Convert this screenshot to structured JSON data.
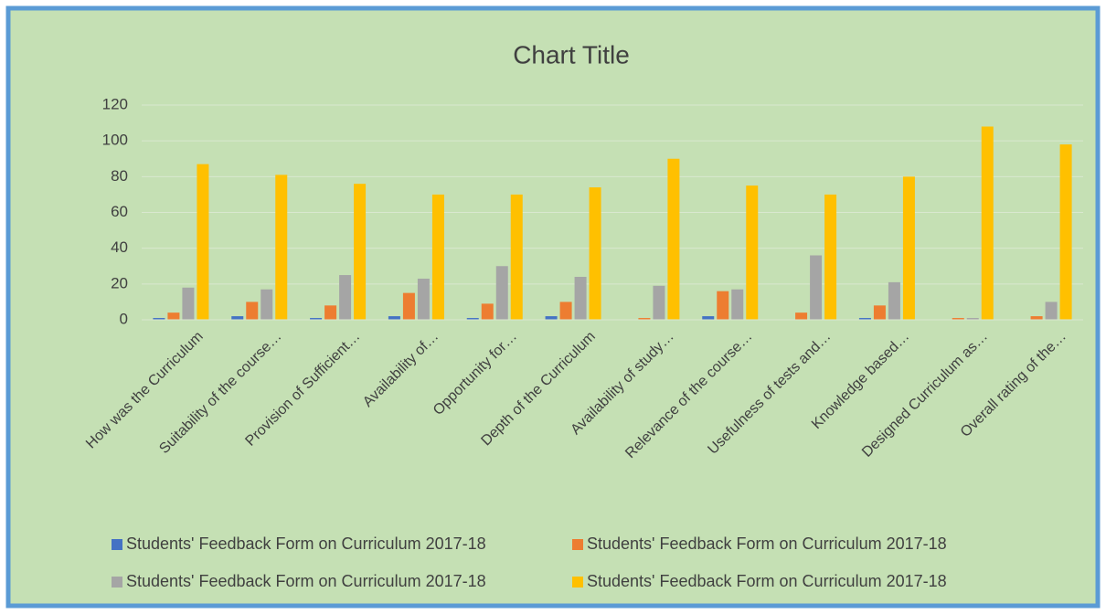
{
  "chart_data": {
    "type": "bar",
    "title": "Chart Title",
    "categories": [
      "How was the Curriculum",
      "Suitability of the course…",
      "Provision of Sufficient…",
      "Availability of…",
      "Opportunity for…",
      "Depth of the Curriculum",
      "Availability of study…",
      "Relevance of the course…",
      "Usefulness of tests and…",
      "Knowledge based…",
      "Designed Curriculum as…",
      "Overall rating of the…"
    ],
    "series": [
      {
        "name": "Students' Feedback Form on Curriculum 2017-18",
        "color": "#4472c4",
        "values": [
          1,
          2,
          1,
          2,
          1,
          2,
          0,
          2,
          0,
          1,
          0,
          0
        ]
      },
      {
        "name": "Students' Feedback Form on Curriculum 2017-18",
        "color": "#ed7d31",
        "values": [
          4,
          10,
          8,
          15,
          9,
          10,
          1,
          16,
          4,
          8,
          1,
          2
        ]
      },
      {
        "name": "Students' Feedback Form on Curriculum 2017-18",
        "color": "#a5a5a5",
        "values": [
          18,
          17,
          25,
          23,
          30,
          24,
          19,
          17,
          36,
          21,
          1,
          10
        ]
      },
      {
        "name": "Students' Feedback Form on Curriculum 2017-18",
        "color": "#ffc000",
        "values": [
          87,
          81,
          76,
          70,
          70,
          74,
          90,
          75,
          70,
          80,
          108,
          98
        ]
      }
    ],
    "ylim": [
      0,
      120
    ],
    "yticks": [
      0,
      20,
      40,
      60,
      80,
      100,
      120
    ],
    "grid": true,
    "legend": "bottom"
  }
}
